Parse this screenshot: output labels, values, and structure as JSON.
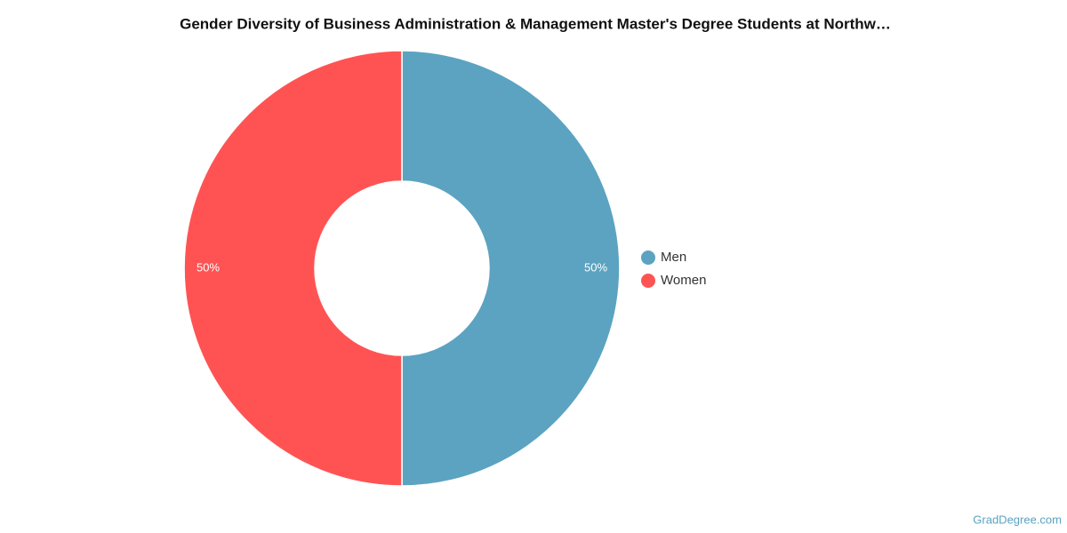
{
  "chart_data": {
    "type": "donut",
    "title": "Gender Diversity of Business Administration & Management Master's Degree Students at Northw…",
    "categories": [
      "Men",
      "Women"
    ],
    "values": [
      50,
      50
    ],
    "value_labels": [
      "50%",
      "50%"
    ],
    "colors": [
      "#5ba3c1",
      "#ff5353"
    ],
    "legend": "right",
    "source": "GradDegree.com"
  }
}
